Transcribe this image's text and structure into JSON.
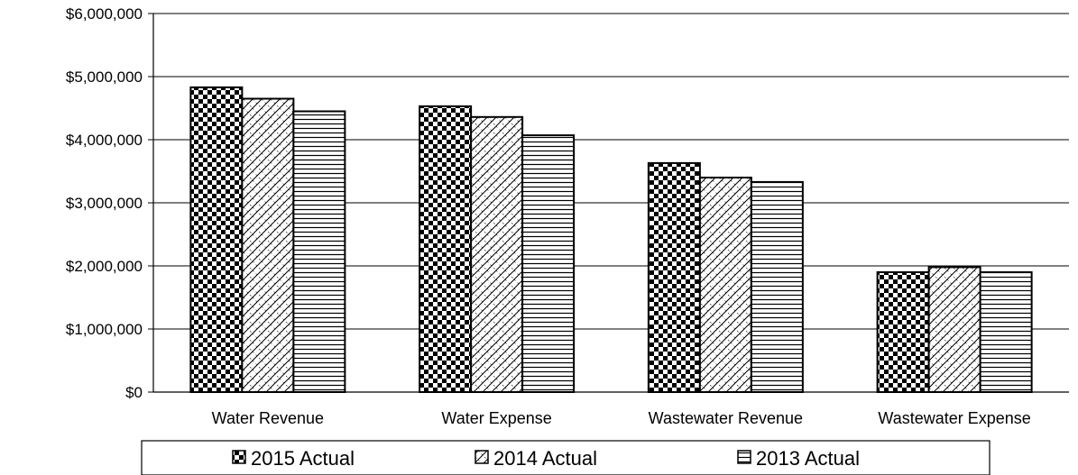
{
  "chart_data": {
    "type": "bar",
    "categories": [
      "Water Revenue",
      "Water Expense",
      "Wastewater Revenue",
      "Wastewater Expense"
    ],
    "series": [
      {
        "name": "2015 Actual",
        "pattern": "checker",
        "values": [
          4830000,
          4530000,
          3630000,
          1900000
        ]
      },
      {
        "name": "2014 Actual",
        "pattern": "diagonal-hatch",
        "values": [
          4650000,
          4360000,
          3400000,
          1980000
        ]
      },
      {
        "name": "2013 Actual",
        "pattern": "horizontal-lines",
        "values": [
          4450000,
          4070000,
          3330000,
          1900000
        ]
      }
    ],
    "y_ticks": [
      "$0",
      "$1,000,000",
      "$2,000,000",
      "$3,000,000",
      "$4,000,000",
      "$5,000,000",
      "$6,000,000"
    ],
    "ylim": [
      0,
      6000000
    ],
    "grid": true,
    "legend_position": "bottom",
    "colors": {
      "bar_fill": "#ffffff",
      "bar_ink": "#000000",
      "grid": "#000000"
    }
  }
}
